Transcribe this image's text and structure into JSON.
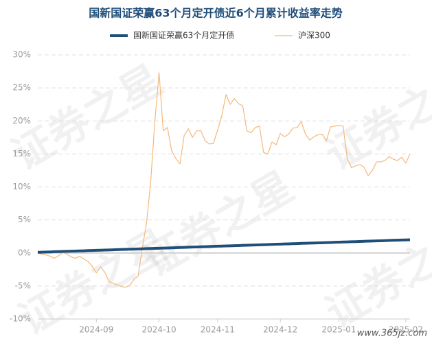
{
  "chart_data": {
    "type": "line",
    "title": "国新国证荣赢63个月定开债近6个月累计收益率走势",
    "watermark": "证券之星",
    "site": "www.365jz.com",
    "categories": [
      null,
      null,
      null,
      null,
      null,
      null,
      null,
      null,
      null,
      null,
      null,
      null,
      null,
      null,
      "2024-09",
      null,
      null,
      null,
      null,
      null,
      null,
      null,
      null,
      null,
      null,
      null,
      null,
      null,
      null,
      "2024-10",
      null,
      null,
      null,
      null,
      null,
      null,
      null,
      null,
      null,
      null,
      null,
      null,
      null,
      "2024-11",
      null,
      null,
      null,
      null,
      null,
      null,
      null,
      null,
      null,
      null,
      null,
      null,
      null,
      null,
      "2024-12",
      null,
      null,
      null,
      null,
      null,
      null,
      null,
      null,
      null,
      null,
      null,
      null,
      null,
      "2025-01",
      null,
      null,
      null,
      null,
      null,
      null,
      null,
      null,
      null,
      null,
      null,
      null,
      null,
      null,
      null,
      "2025-02",
      null
    ],
    "series": [
      {
        "name": "国新国证荣赢63个月定开债",
        "color": "#1f4e79",
        "width": 4,
        "values": [
          0.1,
          0.12,
          0.14,
          0.16,
          0.19,
          0.21,
          0.23,
          0.25,
          0.27,
          0.29,
          0.31,
          0.33,
          0.36,
          0.38,
          0.4,
          0.42,
          0.44,
          0.46,
          0.48,
          0.51,
          0.53,
          0.55,
          0.57,
          0.59,
          0.61,
          0.63,
          0.66,
          0.68,
          0.7,
          0.72,
          0.74,
          0.76,
          0.78,
          0.8,
          0.83,
          0.85,
          0.87,
          0.89,
          0.91,
          0.93,
          0.95,
          0.98,
          1.0,
          1.02,
          1.04,
          1.06,
          1.08,
          1.1,
          1.12,
          1.15,
          1.17,
          1.19,
          1.21,
          1.23,
          1.25,
          1.27,
          1.3,
          1.32,
          1.34,
          1.36,
          1.38,
          1.4,
          1.42,
          1.45,
          1.47,
          1.49,
          1.51,
          1.53,
          1.55,
          1.57,
          1.59,
          1.62,
          1.64,
          1.66,
          1.68,
          1.7,
          1.72,
          1.74,
          1.77,
          1.79,
          1.81,
          1.83,
          1.85,
          1.87,
          1.89,
          1.92,
          1.94,
          1.96,
          1.98,
          2.0
        ]
      },
      {
        "name": "沪深300",
        "color": "#f5b87a",
        "width": 1.2,
        "values": [
          0,
          -0.2,
          -0.3,
          -0.5,
          -0.8,
          -0.4,
          0.1,
          -0.2,
          -0.6,
          -0.8,
          -0.5,
          -0.9,
          -1.3,
          -2,
          -3,
          -2.1,
          -2.9,
          -4.3,
          -4.6,
          -4.8,
          -5.1,
          -5.2,
          -4.9,
          -4,
          -3.5,
          0.8,
          4.5,
          10.8,
          20,
          27.3,
          18.5,
          19,
          15.5,
          14.3,
          13.5,
          17.8,
          18.8,
          17.5,
          18.5,
          18.5,
          17,
          16.5,
          16.6,
          18.6,
          20.8,
          24,
          22.5,
          23.4,
          22.6,
          22.3,
          18.5,
          18.2,
          19,
          19.2,
          15.2,
          15,
          16.8,
          16.4,
          18.1,
          17.6,
          18,
          18.9,
          19,
          19.9,
          18,
          17.1,
          17.6,
          17.9,
          18,
          17,
          19.1,
          19.2,
          19.3,
          19.2,
          14.3,
          12.9,
          13.2,
          13.4,
          13,
          11.7,
          12.5,
          13.8,
          13.8,
          14,
          14.6,
          14.2,
          14,
          14.5,
          13.6,
          15
        ]
      }
    ],
    "ylim": [
      -10,
      30
    ],
    "yticks": [
      {
        "value": -10,
        "label": "-10%"
      },
      {
        "value": -5,
        "label": "-5%"
      },
      {
        "value": 0,
        "label": "0%"
      },
      {
        "value": 5,
        "label": "5%"
      },
      {
        "value": 10,
        "label": "10%"
      },
      {
        "value": 15,
        "label": "15%"
      },
      {
        "value": 20,
        "label": "20%"
      },
      {
        "value": 25,
        "label": "25%"
      },
      {
        "value": 30,
        "label": "30%"
      }
    ],
    "grid": true
  }
}
